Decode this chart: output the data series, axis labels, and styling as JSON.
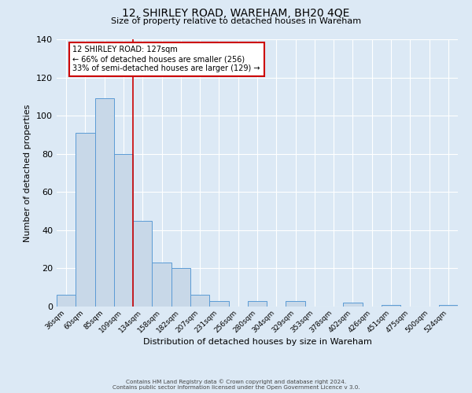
{
  "title_line1": "12, SHIRLEY ROAD, WAREHAM, BH20 4QE",
  "title_line2": "Size of property relative to detached houses in Wareham",
  "xlabel": "Distribution of detached houses by size in Wareham",
  "ylabel": "Number of detached properties",
  "bin_labels": [
    "36sqm",
    "60sqm",
    "85sqm",
    "109sqm",
    "134sqm",
    "158sqm",
    "182sqm",
    "207sqm",
    "231sqm",
    "256sqm",
    "280sqm",
    "304sqm",
    "329sqm",
    "353sqm",
    "378sqm",
    "402sqm",
    "426sqm",
    "451sqm",
    "475sqm",
    "500sqm",
    "524sqm"
  ],
  "bar_heights": [
    6,
    91,
    109,
    80,
    45,
    23,
    20,
    6,
    3,
    0,
    3,
    0,
    3,
    0,
    0,
    2,
    0,
    1,
    0,
    0,
    1
  ],
  "bar_color": "#c8d8e8",
  "bar_edge_color": "#5b9bd5",
  "annotation_text": "12 SHIRLEY ROAD: 127sqm\n← 66% of detached houses are smaller (256)\n33% of semi-detached houses are larger (129) →",
  "annotation_box_color": "#ffffff",
  "annotation_box_edge": "#cc0000",
  "vline_color": "#cc0000",
  "ylim": [
    0,
    140
  ],
  "yticks": [
    0,
    20,
    40,
    60,
    80,
    100,
    120,
    140
  ],
  "background_color": "#dce9f5",
  "plot_bg_color": "#dce9f5",
  "footer_line1": "Contains HM Land Registry data © Crown copyright and database right 2024.",
  "footer_line2": "Contains public sector information licensed under the Open Government Licence v 3.0."
}
